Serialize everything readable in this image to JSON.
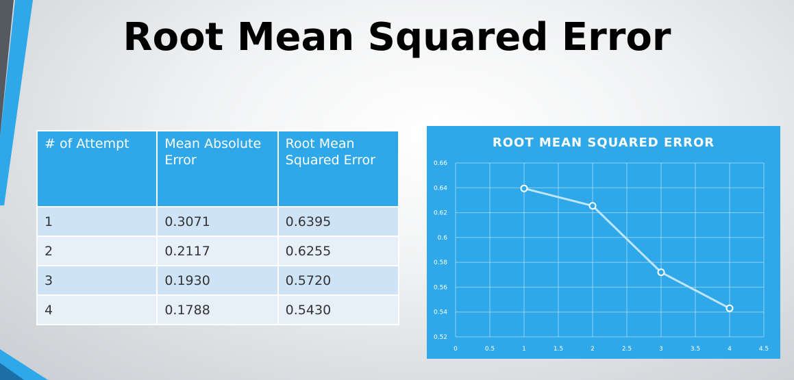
{
  "slide": {
    "title": "Root Mean Squared Error"
  },
  "table": {
    "headers": [
      "# of Attempt",
      "Mean Absolute Error",
      "Root Mean Squared Error"
    ],
    "rows": [
      [
        "1",
        "0.3071",
        "0.6395"
      ],
      [
        "2",
        "0.2117",
        "0.6255"
      ],
      [
        "3",
        "0.1930",
        "0.5720"
      ],
      [
        "4",
        "0.1788",
        "0.5430"
      ]
    ]
  },
  "colors": {
    "accent": "#2fa8ea",
    "row_odd": "#cfe3f6",
    "row_even": "#e7eff9",
    "line": "#bfe6fb"
  },
  "chart_data": {
    "type": "line",
    "title": "ROOT MEAN SQUARED ERROR",
    "xlabel": "",
    "ylabel": "",
    "x": [
      1,
      2,
      3,
      4
    ],
    "series": [
      {
        "values": [
          0.6395,
          0.6255,
          0.572,
          0.543
        ]
      }
    ],
    "xlim": [
      0,
      4.5
    ],
    "ylim": [
      0.52,
      0.66
    ],
    "xticks": [
      "0",
      "0.5",
      "1",
      "1.5",
      "2",
      "2.5",
      "3",
      "3.5",
      "4",
      "4.5"
    ],
    "yticks": [
      "0.52",
      "0.54",
      "0.56",
      "0.58",
      "0.6",
      "0.62",
      "0.64",
      "0.66"
    ],
    "grid": true,
    "legend": "none"
  }
}
